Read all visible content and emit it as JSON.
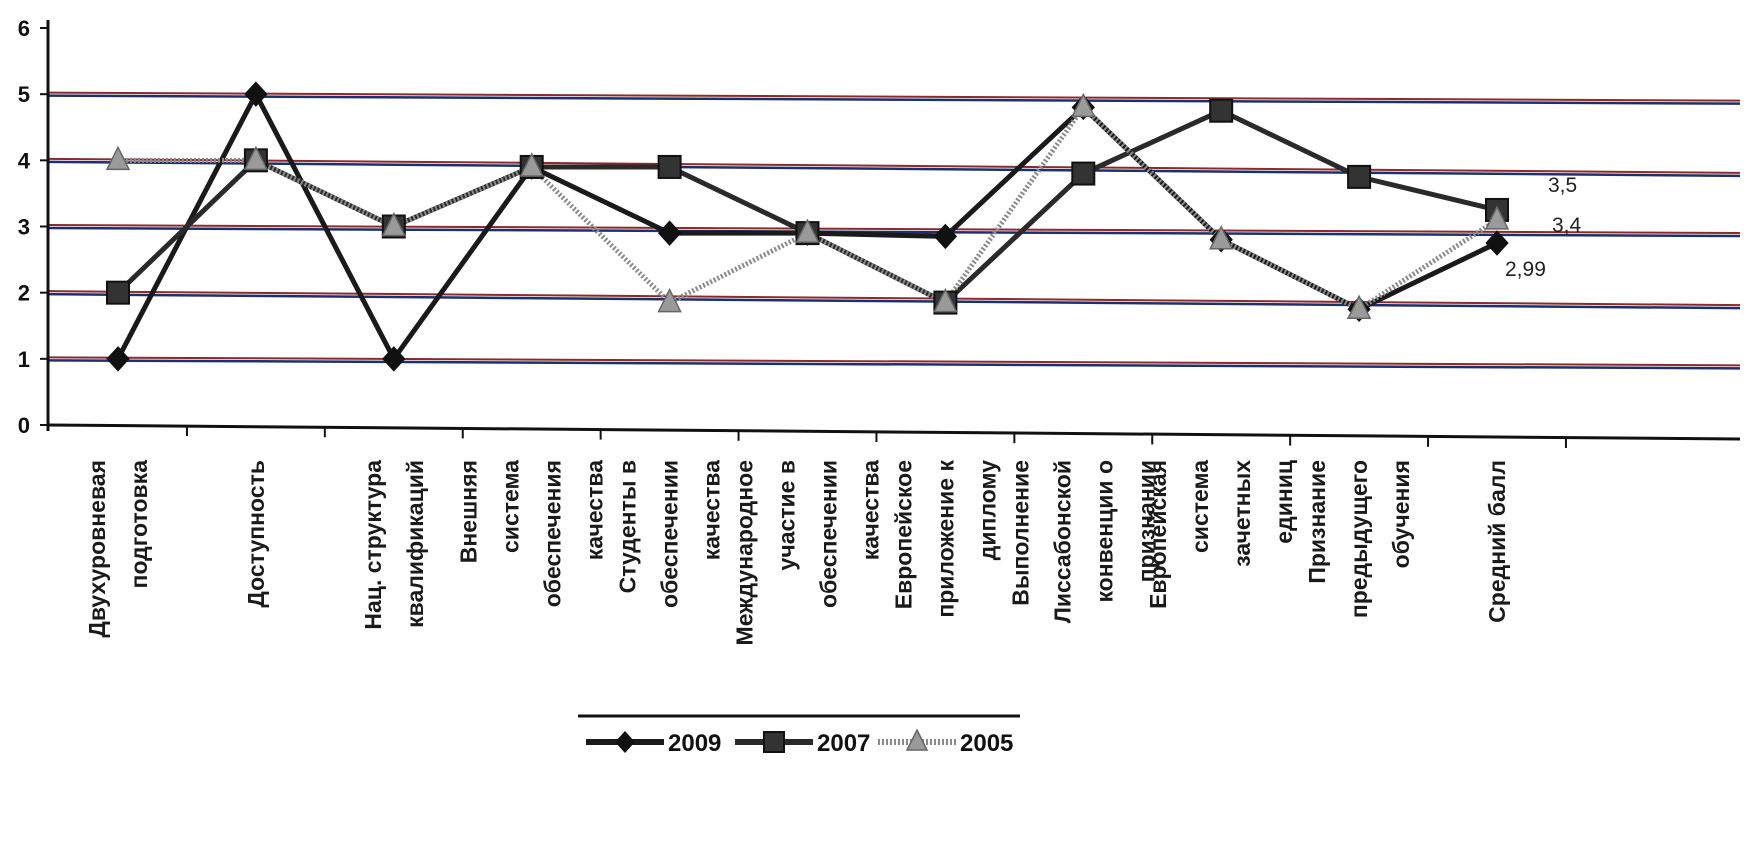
{
  "chart_data": {
    "type": "line",
    "categories": [
      [
        "Двухуровневая",
        "подготовка"
      ],
      [
        "Доступность"
      ],
      [
        "Нац. структура",
        "квалификаций"
      ],
      [
        "Внешняя",
        "система",
        "обеспечения",
        "качества"
      ],
      [
        "Студенты в",
        "обеспечении",
        "качества"
      ],
      [
        "Международное",
        "участие в",
        "обеспечении",
        "качества"
      ],
      [
        "Европейское",
        "приложение к",
        "диплому"
      ],
      [
        "Выполнение",
        "Лиссабонской",
        "конвенции о",
        "признании"
      ],
      [
        "Европейская",
        "система",
        "зачетных",
        "единиц"
      ],
      [
        "Признание",
        "предыдущего",
        "обучения"
      ],
      [
        "Средний балл"
      ]
    ],
    "series": [
      {
        "name": "2009",
        "marker": "diamond",
        "color": "#1a1a1a",
        "values": [
          1,
          5,
          1,
          3.9,
          2.9,
          2.9,
          2.85,
          4.8,
          2.8,
          1.75,
          2.75
        ]
      },
      {
        "name": "2007",
        "marker": "square",
        "color": "#2a2a2a",
        "values": [
          2,
          4,
          3,
          3.9,
          3.9,
          2.9,
          1.85,
          3.8,
          4.75,
          3.75,
          3.25
        ]
      },
      {
        "name": "2005",
        "marker": "triangle",
        "color": "#8a8a8a",
        "values": [
          4,
          4,
          3,
          3.9,
          1.85,
          2.9,
          1.85,
          4.8,
          2.8,
          1.75,
          3.1
        ]
      }
    ],
    "annotations": [
      "3,5",
      "3,4",
      "2,99"
    ],
    "yticks": [
      "0",
      "1",
      "2",
      "3",
      "4",
      "5",
      "6"
    ],
    "ylim": [
      0,
      6
    ],
    "grid": true,
    "legend_position": "bottom",
    "gridline_colors": [
      "#8b2a2a",
      "#1e2f6e"
    ]
  }
}
